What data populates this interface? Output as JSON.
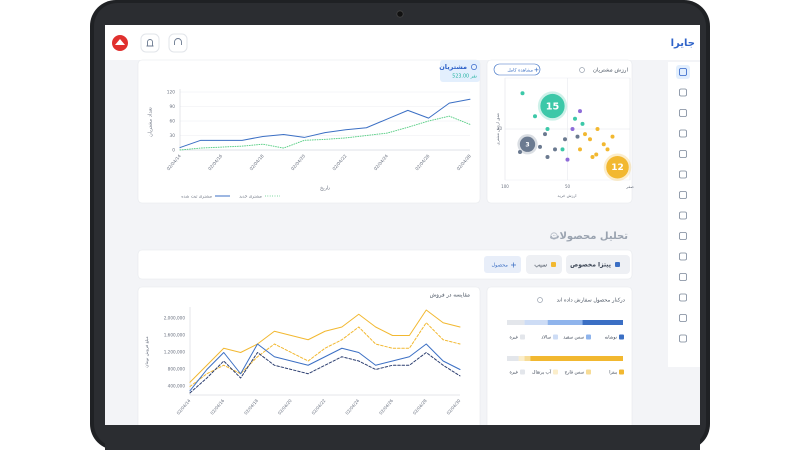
{
  "header": {
    "logo": "جایرا"
  },
  "customers_chart": {
    "type": "line",
    "title": "مشتریان",
    "total": "523.00 نفر",
    "y_label": "تعداد مشتریان",
    "x_label": "تاریخ",
    "categories": [
      "02/04/14",
      null,
      "02/04/16",
      null,
      "02/04/18",
      null,
      "02/04/20",
      null,
      "02/04/22",
      null,
      "02/04/24",
      null,
      "02/04/26",
      null,
      "02/04/28"
    ],
    "series": [
      {
        "name": "مشتری ثبت شده",
        "color": "#3b6fc4",
        "style": "solid",
        "values": [
          5,
          20,
          20,
          20,
          28,
          32,
          26,
          36,
          42,
          46,
          64,
          82,
          66,
          97,
          105
        ]
      },
      {
        "name": "مشتری جدید",
        "color": "#5fd08a",
        "style": "dotted",
        "values": [
          0,
          4,
          6,
          8,
          12,
          4,
          20,
          22,
          25,
          30,
          35,
          47,
          60,
          70,
          53
        ]
      }
    ],
    "ylim": [
      0,
      120
    ],
    "yticks": [
      0,
      30,
      60,
      90,
      120
    ],
    "grid": true
  },
  "value_chart": {
    "type": "scatter",
    "title": "ارزش مشتریان",
    "button": "مشاهده کامل",
    "x_label": "ارزش خرید",
    "y_label": "عمق ارزش مشتری",
    "xlim": [
      100,
      0
    ],
    "ylim": [
      0,
      40
    ],
    "xticks": [
      100,
      50,
      {
        "value": 0,
        "label": "صفر"
      }
    ],
    "yticks": [
      20
    ],
    "grid": true,
    "points": [
      {
        "x": 86,
        "y": 34,
        "color": "#3cc8a8"
      },
      {
        "x": 76,
        "y": 25,
        "color": "#3cc8a8"
      },
      {
        "x": 66,
        "y": 20,
        "color": "#3cc8a8"
      },
      {
        "x": 58,
        "y": 28,
        "color": "#3cc8a8"
      },
      {
        "x": 44,
        "y": 24,
        "color": "#3cc8a8"
      },
      {
        "x": 38,
        "y": 22,
        "color": "#3cc8a8"
      },
      {
        "x": 54,
        "y": 12,
        "color": "#3cc8a8"
      },
      {
        "x": 88,
        "y": 11,
        "color": "#6b7a90"
      },
      {
        "x": 72,
        "y": 13,
        "color": "#6b7a90"
      },
      {
        "x": 66,
        "y": 9,
        "color": "#6b7a90"
      },
      {
        "x": 60,
        "y": 12,
        "color": "#6b7a90"
      },
      {
        "x": 52,
        "y": 16,
        "color": "#6b7a90"
      },
      {
        "x": 42,
        "y": 17,
        "color": "#6b7a90"
      },
      {
        "x": 68,
        "y": 18,
        "color": "#6b7a90"
      },
      {
        "x": 36,
        "y": 18,
        "color": "#f2b830"
      },
      {
        "x": 32,
        "y": 16,
        "color": "#f2b830"
      },
      {
        "x": 26,
        "y": 20,
        "color": "#f2b830"
      },
      {
        "x": 21,
        "y": 14,
        "color": "#f2b830"
      },
      {
        "x": 18,
        "y": 12,
        "color": "#f2b830"
      },
      {
        "x": 27,
        "y": 10,
        "color": "#f2b830"
      },
      {
        "x": 14,
        "y": 17,
        "color": "#f2b830"
      },
      {
        "x": 40,
        "y": 12,
        "color": "#f2b830"
      },
      {
        "x": 30,
        "y": 9,
        "color": "#f2b830"
      },
      {
        "x": 40,
        "y": 27,
        "color": "#8e6cd8"
      },
      {
        "x": 46,
        "y": 20,
        "color": "#8e6cd8"
      },
      {
        "x": 50,
        "y": 8,
        "color": "#8e6cd8"
      }
    ],
    "bubbles": [
      {
        "x": 62,
        "y": 29,
        "size": 15,
        "color": "#3cc8a8"
      },
      {
        "x": 82,
        "y": 14,
        "size": 3,
        "color": "#6b7a90"
      },
      {
        "x": 10,
        "y": 5,
        "size": 12,
        "color": "#f2b830"
      }
    ]
  },
  "products": {
    "title": "تحلیل محصولات",
    "filters": [
      {
        "label": "پیتزا مخصوص",
        "color": "#3b6fc4"
      },
      {
        "label": "سیب",
        "color": "#f2b830"
      }
    ],
    "add_button": "محصول"
  },
  "sales_chart": {
    "type": "line",
    "title": "مقایسه در فروش",
    "y_label": "مبلغ فروش تومان",
    "categories": [
      "02/04/14",
      null,
      "02/04/16",
      null,
      "02/04/18",
      null,
      "02/04/20",
      null,
      "02/04/22",
      null,
      "02/04/24",
      null,
      "02/04/26",
      null,
      "02/04/28",
      null,
      "02/04/30"
    ],
    "series": [
      {
        "color": "#f2b830",
        "style": "solid",
        "values": [
          500000,
          900000,
          1300000,
          1200000,
          1400000,
          1700000,
          1600000,
          1500000,
          1700000,
          1800000,
          2100000,
          1800000,
          1600000,
          1600000,
          2200000,
          1900000,
          1800000
        ]
      },
      {
        "color": "#f2b830",
        "style": "dashed",
        "values": [
          400000,
          700000,
          900000,
          700000,
          1100000,
          1400000,
          1200000,
          1000000,
          1300000,
          1500000,
          1800000,
          1400000,
          1300000,
          1300000,
          1900000,
          1500000,
          1400000
        ]
      },
      {
        "color": "#3b6fc4",
        "style": "solid",
        "values": [
          300000,
          800000,
          1200000,
          700000,
          1400000,
          1100000,
          1000000,
          900000,
          1100000,
          1300000,
          1200000,
          900000,
          1000000,
          1100000,
          1400000,
          1000000,
          800000
        ]
      },
      {
        "color": "#2c3e70",
        "style": "dashed",
        "values": [
          250000,
          600000,
          1000000,
          600000,
          1200000,
          900000,
          800000,
          700000,
          900000,
          1100000,
          1000000,
          800000,
          900000,
          900000,
          1200000,
          900000,
          650000
        ]
      }
    ],
    "ylim": [
      200000,
      2200000
    ],
    "yticks": [
      {
        "value": 400000,
        "label": "400,000"
      },
      {
        "value": 800000,
        "label": "800,000"
      },
      {
        "value": 1200000,
        "label": "1,200,000"
      },
      {
        "value": 1600000,
        "label": "1,600,000"
      },
      {
        "value": 2000000,
        "label": "2,000,000"
      }
    ],
    "grid": false
  },
  "companions_chart": {
    "type": "stacked_bar",
    "title": "درکنار محصول سفارش داده اند",
    "bars": [
      {
        "segments": [
          {
            "name": "نوشابه",
            "color": "#3b6fc4",
            "value": 35
          },
          {
            "name": "سس سفید",
            "color": "#8fb4ec",
            "value": 30
          },
          {
            "name": "سالاد",
            "color": "#cddcf5",
            "value": 20
          },
          {
            "name": "غیره",
            "color": "#e3e6eb",
            "value": 15
          }
        ]
      },
      {
        "segments": [
          {
            "name": "پیتزا",
            "color": "#f2b830",
            "value": 80
          },
          {
            "name": "سس قارچ",
            "color": "#f7dc96",
            "value": 5
          },
          {
            "name": "آب پرتقال",
            "color": "#fbeecb",
            "value": 5
          },
          {
            "name": "غیره",
            "color": "#e3e6eb",
            "value": 10
          }
        ]
      }
    ]
  }
}
